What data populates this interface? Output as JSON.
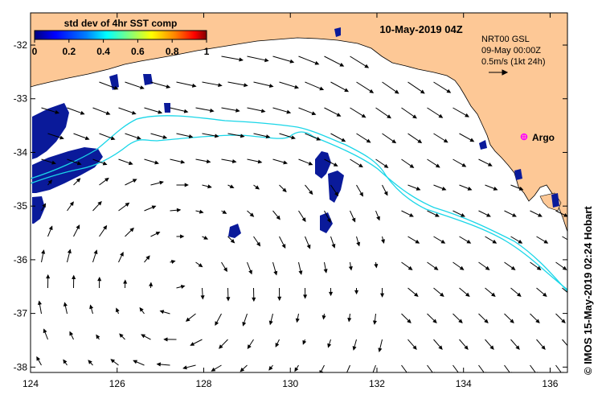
{
  "title": "10-May-2019 04Z",
  "colorbar": {
    "label": "std dev of 4hr SST comp",
    "ticks": [
      "0",
      "0.2",
      "0.4",
      "0.6",
      "0.8",
      "1"
    ],
    "colors": [
      "#00007f",
      "#0000ff",
      "#007fff",
      "#00ffff",
      "#7fff7f",
      "#ffff00",
      "#ff7f00",
      "#ff0000",
      "#7f0000"
    ]
  },
  "current_info": {
    "line1": "NRT00 GSL",
    "line2": "09-May 00:00Z",
    "line3": "0.5m/s (1kt 24h)"
  },
  "argo_label": "Argo",
  "credit": "© IMOS 15-May-2019 02:24 Hobart",
  "axes": {
    "lon_ticks": [
      "124",
      "126",
      "128",
      "130",
      "132",
      "134",
      "136"
    ],
    "lat_ticks": [
      "-32",
      "-33",
      "-34",
      "-35",
      "-36",
      "-37",
      "-38"
    ]
  },
  "colors": {
    "land": "#fdc896",
    "sst_patch": "#0a1a9a",
    "contour": "#1ad6e8",
    "argo": "#ff00ff",
    "arrow": "#000000"
  },
  "icons": [
    "argo-float-marker",
    "scale-arrow-icon"
  ]
}
